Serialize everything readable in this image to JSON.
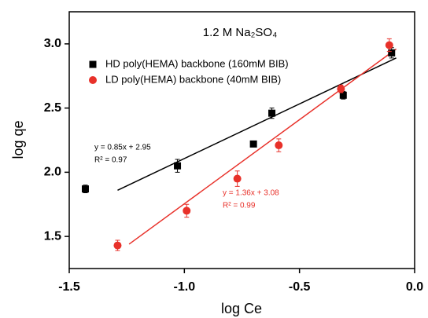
{
  "chart_data": {
    "type": "scatter",
    "title": "1.2 M Na₂SO₄",
    "x_label": "log Ce",
    "y_label": "log qe",
    "xlim": [
      -1.5,
      0.0
    ],
    "ylim": [
      1.25,
      3.25
    ],
    "xticks": [
      -1.5,
      {
        "value": -1,
        "label": "-1.0"
      },
      -0.5,
      {
        "value": 0,
        "label": "0.0"
      }
    ],
    "yticks": [
      1.5,
      {
        "value": 2,
        "label": "2.0"
      },
      2.5,
      {
        "value": 3,
        "label": "3.0"
      }
    ],
    "legend": "upper-left",
    "series": [
      {
        "name": "HD poly(HEMA) backbone (160mM BIB)",
        "color": "#000000",
        "marker": "square",
        "x": [
          -1.43,
          -1.03,
          -0.7,
          -0.62,
          -0.31,
          -0.1
        ],
        "values": [
          1.87,
          2.05,
          2.22,
          2.46,
          2.6,
          2.93
        ],
        "errors": [
          0.03,
          0.05,
          0.02,
          0.04,
          0.03,
          0.04
        ]
      },
      {
        "name": "LD poly(HEMA) backbone (40mM BIB)",
        "color": "#e8312a",
        "marker": "circle",
        "x": [
          -1.29,
          -0.99,
          -0.77,
          -0.59,
          -0.32,
          -0.11
        ],
        "values": [
          1.43,
          1.7,
          1.95,
          2.21,
          2.65,
          2.99
        ],
        "errors": [
          0.04,
          0.05,
          0.06,
          0.05,
          0.03,
          0.05
        ]
      }
    ],
    "fits": [
      {
        "color": "#000000",
        "x": [
          -1.29,
          -0.08
        ],
        "values": [
          1.86,
          2.89
        ],
        "equation": "y = 0.85x + 2.95",
        "r2": "R² = 0.97"
      },
      {
        "color": "#e8312a",
        "x": [
          -1.24,
          -0.08
        ],
        "values": [
          1.44,
          2.96
        ],
        "equation": "y = 1.36x + 3.08",
        "r2": "R² = 0.99"
      }
    ]
  }
}
